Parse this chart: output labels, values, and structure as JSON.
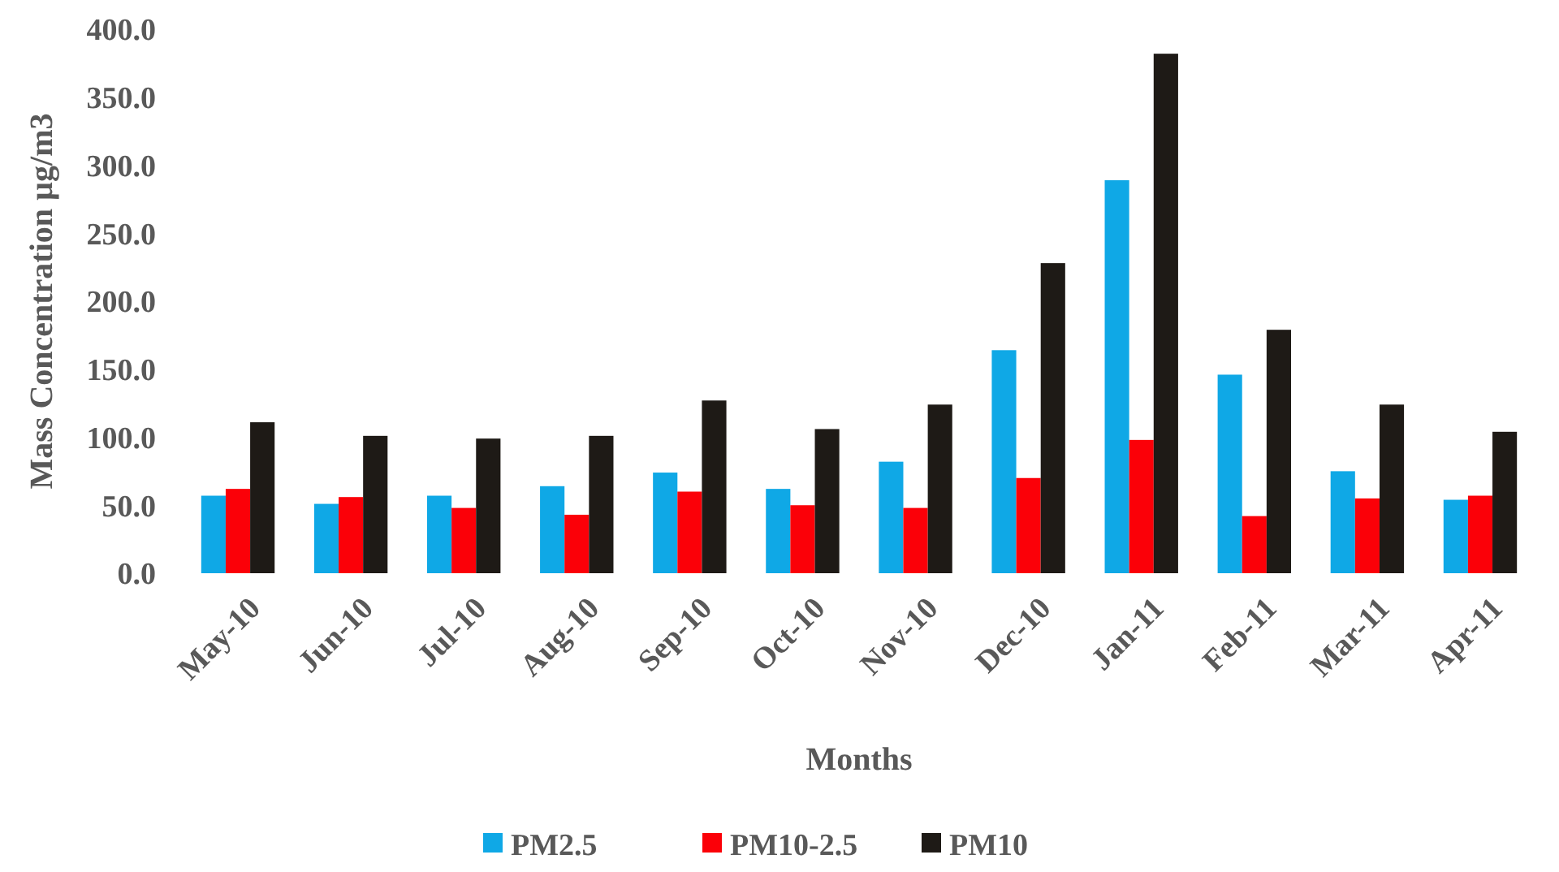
{
  "chart_data": {
    "type": "bar",
    "xlabel": "Months",
    "ylabel": "Mass Concentration  µg/m3",
    "categories": [
      "May-10",
      "Jun-10",
      "Jul-10",
      "Aug-10",
      "Sep-10",
      "Oct-10",
      "Nov-10",
      "Dec-10",
      "Jan-11",
      "Feb-11",
      "Mar-11",
      "Apr-11"
    ],
    "series": [
      {
        "name": "PM2.5",
        "color": "#0fa8e6",
        "values": [
          57,
          51,
          57,
          64,
          74,
          62,
          82,
          164,
          289,
          146,
          75,
          54
        ]
      },
      {
        "name": "PM10-2.5",
        "color": "#fb0008",
        "values": [
          62,
          56,
          48,
          43,
          60,
          50,
          48,
          70,
          98,
          42,
          55,
          57
        ]
      },
      {
        "name": "PM10",
        "color": "#1e1a16",
        "values": [
          111,
          101,
          99,
          101,
          127,
          106,
          124,
          228,
          382,
          179,
          124,
          104
        ]
      }
    ],
    "ylim": [
      0,
      400
    ],
    "yticks": [
      {
        "value": 0,
        "label": "0.0"
      },
      {
        "value": 50,
        "label": "50.0"
      },
      {
        "value": 100,
        "label": "100.0"
      },
      {
        "value": 150,
        "label": "150.0"
      },
      {
        "value": 200,
        "label": "200.0"
      },
      {
        "value": 250,
        "label": "250.0"
      },
      {
        "value": 300,
        "label": "300.0"
      },
      {
        "value": 350,
        "label": "350.0"
      },
      {
        "value": 400,
        "label": "400.0"
      }
    ],
    "legend": "bottom",
    "grid": false
  }
}
